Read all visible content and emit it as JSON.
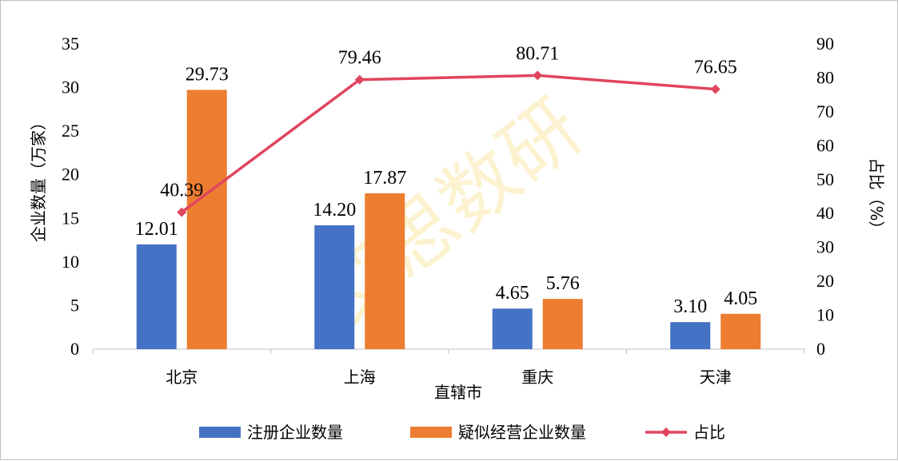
{
  "watermark": "艾思数研",
  "chart_data": {
    "type": "bar",
    "categories": [
      "北京",
      "上海",
      "重庆",
      "天津"
    ],
    "xlabel": "直辖市",
    "ylabel": "企业数量（万家）",
    "y2label": "占比（%）",
    "ylim": [
      0,
      35
    ],
    "yticks": [
      0,
      5,
      10,
      15,
      20,
      25,
      30,
      35
    ],
    "y2lim": [
      0,
      90
    ],
    "y2ticks": [
      0,
      10,
      20,
      30,
      40,
      50,
      60,
      70,
      80,
      90
    ],
    "legend_position": "bottom",
    "series": [
      {
        "name": "注册企业数量",
        "type": "bar",
        "axis": "left",
        "color": "#4472c4",
        "values": [
          12.01,
          14.2,
          4.65,
          3.1
        ],
        "labels": [
          "12.01",
          "14.20",
          "4.65",
          "3.10"
        ]
      },
      {
        "name": "疑似经营企业数量",
        "type": "bar",
        "axis": "left",
        "color": "#ed7d31",
        "values": [
          29.73,
          17.87,
          5.76,
          4.05
        ],
        "labels": [
          "29.73",
          "17.87",
          "5.76",
          "4.05"
        ]
      },
      {
        "name": "占比",
        "type": "line",
        "axis": "right",
        "color": "#e0455e",
        "values": [
          40.39,
          79.46,
          80.71,
          76.65
        ],
        "labels": [
          "40.39",
          "79.46",
          "80.71",
          "76.65"
        ]
      }
    ]
  }
}
